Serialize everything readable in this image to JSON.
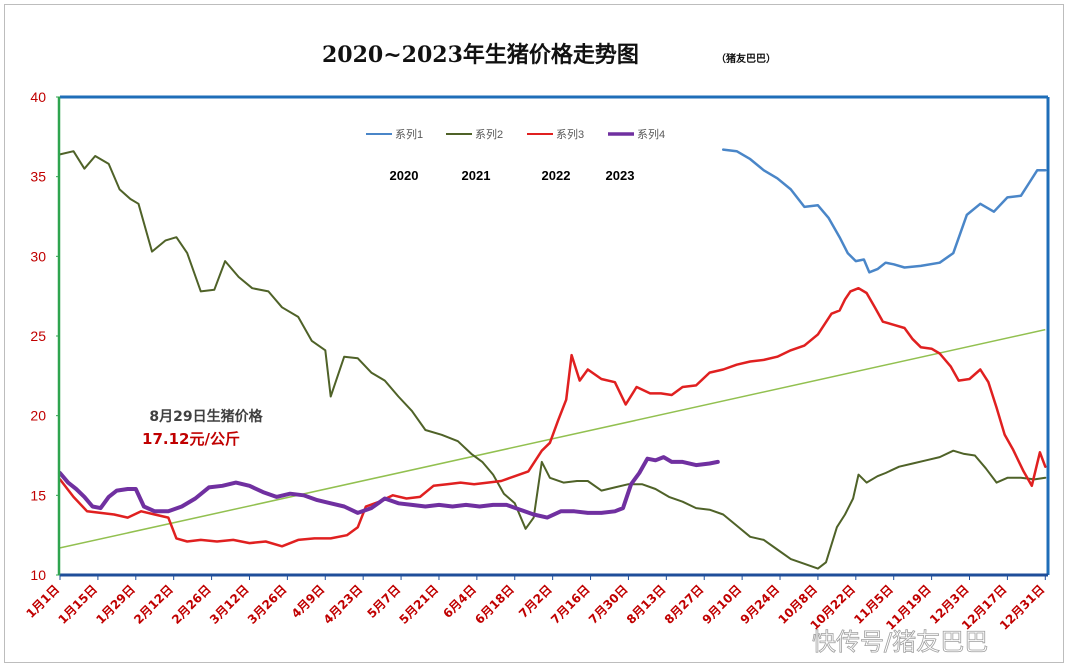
{
  "chart_data": {
    "type": "line",
    "title": "2020~2023年生猪价格走势图",
    "subtitle": "（猪友巴巴）",
    "ylim": [
      10,
      40
    ],
    "yticks": [
      10,
      15,
      20,
      25,
      30,
      35,
      40
    ],
    "grid": false,
    "legend_position": "top",
    "x_tick_labels": [
      "1月1日",
      "1月15日",
      "1月29日",
      "2月12日",
      "2月26日",
      "3月12日",
      "3月26日",
      "4月9日",
      "4月23日",
      "5月7日",
      "5月21日",
      "6月4日",
      "6月18日",
      "7月2日",
      "7月16日",
      "7月30日",
      "8月13日",
      "8月27日",
      "9月10日",
      "9月24日",
      "10月8日",
      "10月22日",
      "11月5日",
      "11月19日",
      "12月3日",
      "12月17日",
      "12月31日"
    ],
    "x_tick_day": [
      0,
      14,
      28,
      42,
      56,
      70,
      84,
      98,
      112,
      126,
      140,
      154,
      168,
      182,
      196,
      210,
      224,
      238,
      252,
      266,
      280,
      294,
      308,
      322,
      336,
      350,
      364
    ],
    "x_domain": [
      0,
      365
    ],
    "series": [
      {
        "name": "系列1",
        "color": "#4a86c8",
        "width": 2.5,
        "points": [
          [
            245,
            36.7
          ],
          [
            250,
            36.6
          ],
          [
            255,
            36.1
          ],
          [
            260,
            35.4
          ],
          [
            265,
            34.9
          ],
          [
            270,
            34.2
          ],
          [
            275,
            33.1
          ],
          [
            280,
            33.2
          ],
          [
            284,
            32.4
          ],
          [
            288,
            31.2
          ],
          [
            291,
            30.2
          ],
          [
            294,
            29.7
          ],
          [
            297,
            29.8
          ],
          [
            299,
            29.0
          ],
          [
            302,
            29.2
          ],
          [
            305,
            29.6
          ],
          [
            308,
            29.5
          ],
          [
            312,
            29.3
          ],
          [
            318,
            29.4
          ],
          [
            325,
            29.6
          ],
          [
            330,
            30.2
          ],
          [
            335,
            32.6
          ],
          [
            340,
            33.3
          ],
          [
            345,
            32.8
          ],
          [
            350,
            33.7
          ],
          [
            355,
            33.8
          ],
          [
            358,
            34.6
          ],
          [
            361,
            35.4
          ],
          [
            364,
            35.4
          ]
        ]
      },
      {
        "name": "系列2",
        "color": "#4f6228",
        "width": 2,
        "points": [
          [
            0,
            36.4
          ],
          [
            5,
            36.6
          ],
          [
            9,
            35.5
          ],
          [
            13,
            36.3
          ],
          [
            18,
            35.8
          ],
          [
            22,
            34.2
          ],
          [
            26,
            33.6
          ],
          [
            29,
            33.3
          ],
          [
            34,
            30.3
          ],
          [
            39,
            31.0
          ],
          [
            43,
            31.2
          ],
          [
            47,
            30.2
          ],
          [
            52,
            27.8
          ],
          [
            57,
            27.9
          ],
          [
            61,
            29.7
          ],
          [
            66,
            28.7
          ],
          [
            71,
            28.0
          ],
          [
            77,
            27.8
          ],
          [
            82,
            26.8
          ],
          [
            88,
            26.2
          ],
          [
            93,
            24.7
          ],
          [
            98,
            24.1
          ],
          [
            100,
            21.2
          ],
          [
            105,
            23.7
          ],
          [
            110,
            23.6
          ],
          [
            115,
            22.7
          ],
          [
            120,
            22.2
          ],
          [
            125,
            21.2
          ],
          [
            130,
            20.3
          ],
          [
            135,
            19.1
          ],
          [
            141,
            18.8
          ],
          [
            147,
            18.4
          ],
          [
            152,
            17.6
          ],
          [
            156,
            17.1
          ],
          [
            160,
            16.3
          ],
          [
            164,
            15.1
          ],
          [
            168,
            14.5
          ],
          [
            172,
            12.9
          ],
          [
            175,
            13.6
          ],
          [
            178,
            17.1
          ],
          [
            181,
            16.1
          ],
          [
            186,
            15.8
          ],
          [
            191,
            15.9
          ],
          [
            195,
            15.9
          ],
          [
            200,
            15.3
          ],
          [
            205,
            15.5
          ],
          [
            210,
            15.7
          ],
          [
            215,
            15.7
          ],
          [
            220,
            15.4
          ],
          [
            225,
            14.9
          ],
          [
            230,
            14.6
          ],
          [
            235,
            14.2
          ],
          [
            240,
            14.1
          ],
          [
            245,
            13.8
          ],
          [
            250,
            13.1
          ],
          [
            255,
            12.4
          ],
          [
            260,
            12.2
          ],
          [
            265,
            11.6
          ],
          [
            270,
            11.0
          ],
          [
            275,
            10.7
          ],
          [
            280,
            10.4
          ],
          [
            283,
            10.8
          ],
          [
            287,
            13.0
          ],
          [
            290,
            13.8
          ],
          [
            293,
            14.8
          ],
          [
            295,
            16.3
          ],
          [
            298,
            15.8
          ],
          [
            302,
            16.2
          ],
          [
            305,
            16.4
          ],
          [
            310,
            16.8
          ],
          [
            315,
            17.0
          ],
          [
            320,
            17.2
          ],
          [
            325,
            17.4
          ],
          [
            330,
            17.8
          ],
          [
            334,
            17.6
          ],
          [
            338,
            17.5
          ],
          [
            342,
            16.7
          ],
          [
            346,
            15.8
          ],
          [
            350,
            16.1
          ],
          [
            355,
            16.1
          ],
          [
            360,
            16.0
          ],
          [
            364,
            16.1
          ]
        ]
      },
      {
        "name": "系列3",
        "color": "#e02020",
        "width": 2.5,
        "points": [
          [
            0,
            16.0
          ],
          [
            5,
            14.9
          ],
          [
            10,
            14.0
          ],
          [
            15,
            13.9
          ],
          [
            20,
            13.8
          ],
          [
            25,
            13.6
          ],
          [
            30,
            14.0
          ],
          [
            35,
            13.8
          ],
          [
            40,
            13.6
          ],
          [
            43,
            12.3
          ],
          [
            47,
            12.1
          ],
          [
            52,
            12.2
          ],
          [
            58,
            12.1
          ],
          [
            64,
            12.2
          ],
          [
            70,
            12.0
          ],
          [
            76,
            12.1
          ],
          [
            82,
            11.8
          ],
          [
            88,
            12.2
          ],
          [
            94,
            12.3
          ],
          [
            100,
            12.3
          ],
          [
            106,
            12.5
          ],
          [
            110,
            13.0
          ],
          [
            113,
            14.3
          ],
          [
            118,
            14.6
          ],
          [
            123,
            15.0
          ],
          [
            128,
            14.8
          ],
          [
            133,
            14.9
          ],
          [
            138,
            15.6
          ],
          [
            143,
            15.7
          ],
          [
            148,
            15.8
          ],
          [
            153,
            15.7
          ],
          [
            158,
            15.8
          ],
          [
            163,
            15.9
          ],
          [
            168,
            16.2
          ],
          [
            173,
            16.5
          ],
          [
            178,
            17.8
          ],
          [
            181,
            18.3
          ],
          [
            184,
            19.7
          ],
          [
            187,
            21.0
          ],
          [
            189,
            23.8
          ],
          [
            192,
            22.2
          ],
          [
            195,
            22.9
          ],
          [
            200,
            22.3
          ],
          [
            205,
            22.1
          ],
          [
            209,
            20.7
          ],
          [
            213,
            21.8
          ],
          [
            218,
            21.4
          ],
          [
            222,
            21.4
          ],
          [
            226,
            21.3
          ],
          [
            230,
            21.8
          ],
          [
            235,
            21.9
          ],
          [
            240,
            22.7
          ],
          [
            245,
            22.9
          ],
          [
            250,
            23.2
          ],
          [
            255,
            23.4
          ],
          [
            260,
            23.5
          ],
          [
            265,
            23.7
          ],
          [
            270,
            24.1
          ],
          [
            275,
            24.4
          ],
          [
            280,
            25.1
          ],
          [
            285,
            26.4
          ],
          [
            288,
            26.6
          ],
          [
            290,
            27.3
          ],
          [
            292,
            27.8
          ],
          [
            295,
            28.0
          ],
          [
            298,
            27.7
          ],
          [
            301,
            26.8
          ],
          [
            304,
            25.9
          ],
          [
            308,
            25.7
          ],
          [
            312,
            25.5
          ],
          [
            315,
            24.8
          ],
          [
            318,
            24.3
          ],
          [
            322,
            24.2
          ],
          [
            325,
            23.9
          ],
          [
            329,
            23.1
          ],
          [
            332,
            22.2
          ],
          [
            336,
            22.3
          ],
          [
            340,
            22.9
          ],
          [
            343,
            22.1
          ],
          [
            346,
            20.5
          ],
          [
            349,
            18.8
          ],
          [
            352,
            17.9
          ],
          [
            356,
            16.5
          ],
          [
            359,
            15.6
          ],
          [
            362,
            17.7
          ],
          [
            364,
            16.8
          ]
        ]
      },
      {
        "name": "系列4",
        "color": "#7030a0",
        "width": 4,
        "points": [
          [
            0,
            16.4
          ],
          [
            3,
            15.8
          ],
          [
            6,
            15.4
          ],
          [
            9,
            14.9
          ],
          [
            12,
            14.3
          ],
          [
            15,
            14.2
          ],
          [
            18,
            14.9
          ],
          [
            21,
            15.3
          ],
          [
            25,
            15.4
          ],
          [
            28,
            15.4
          ],
          [
            31,
            14.3
          ],
          [
            35,
            14.0
          ],
          [
            40,
            14.0
          ],
          [
            45,
            14.3
          ],
          [
            50,
            14.8
          ],
          [
            55,
            15.5
          ],
          [
            60,
            15.6
          ],
          [
            65,
            15.8
          ],
          [
            70,
            15.6
          ],
          [
            75,
            15.2
          ],
          [
            80,
            14.9
          ],
          [
            85,
            15.1
          ],
          [
            90,
            15.0
          ],
          [
            95,
            14.7
          ],
          [
            100,
            14.5
          ],
          [
            105,
            14.3
          ],
          [
            110,
            13.9
          ],
          [
            115,
            14.2
          ],
          [
            120,
            14.8
          ],
          [
            125,
            14.5
          ],
          [
            130,
            14.4
          ],
          [
            135,
            14.3
          ],
          [
            140,
            14.4
          ],
          [
            145,
            14.3
          ],
          [
            150,
            14.4
          ],
          [
            155,
            14.3
          ],
          [
            160,
            14.4
          ],
          [
            165,
            14.4
          ],
          [
            170,
            14.1
          ],
          [
            175,
            13.8
          ],
          [
            180,
            13.6
          ],
          [
            185,
            14.0
          ],
          [
            190,
            14.0
          ],
          [
            195,
            13.9
          ],
          [
            200,
            13.9
          ],
          [
            205,
            14.0
          ],
          [
            208,
            14.2
          ],
          [
            211,
            15.7
          ],
          [
            214,
            16.4
          ],
          [
            217,
            17.3
          ],
          [
            220,
            17.2
          ],
          [
            223,
            17.4
          ],
          [
            226,
            17.1
          ],
          [
            230,
            17.1
          ],
          [
            235,
            16.9
          ],
          [
            240,
            17.0
          ],
          [
            243,
            17.1
          ]
        ]
      }
    ],
    "trendline": {
      "color": "#92c050",
      "from": [
        0,
        11.7
      ],
      "to": [
        364,
        25.4
      ]
    },
    "year_labels": [
      "2020",
      "2021",
      "2022",
      "2023"
    ],
    "annotations": {
      "line1": "8月29日生猪价格",
      "line2": "17.12元/公斤"
    }
  },
  "watermark": "快传号/猪友巴巴"
}
